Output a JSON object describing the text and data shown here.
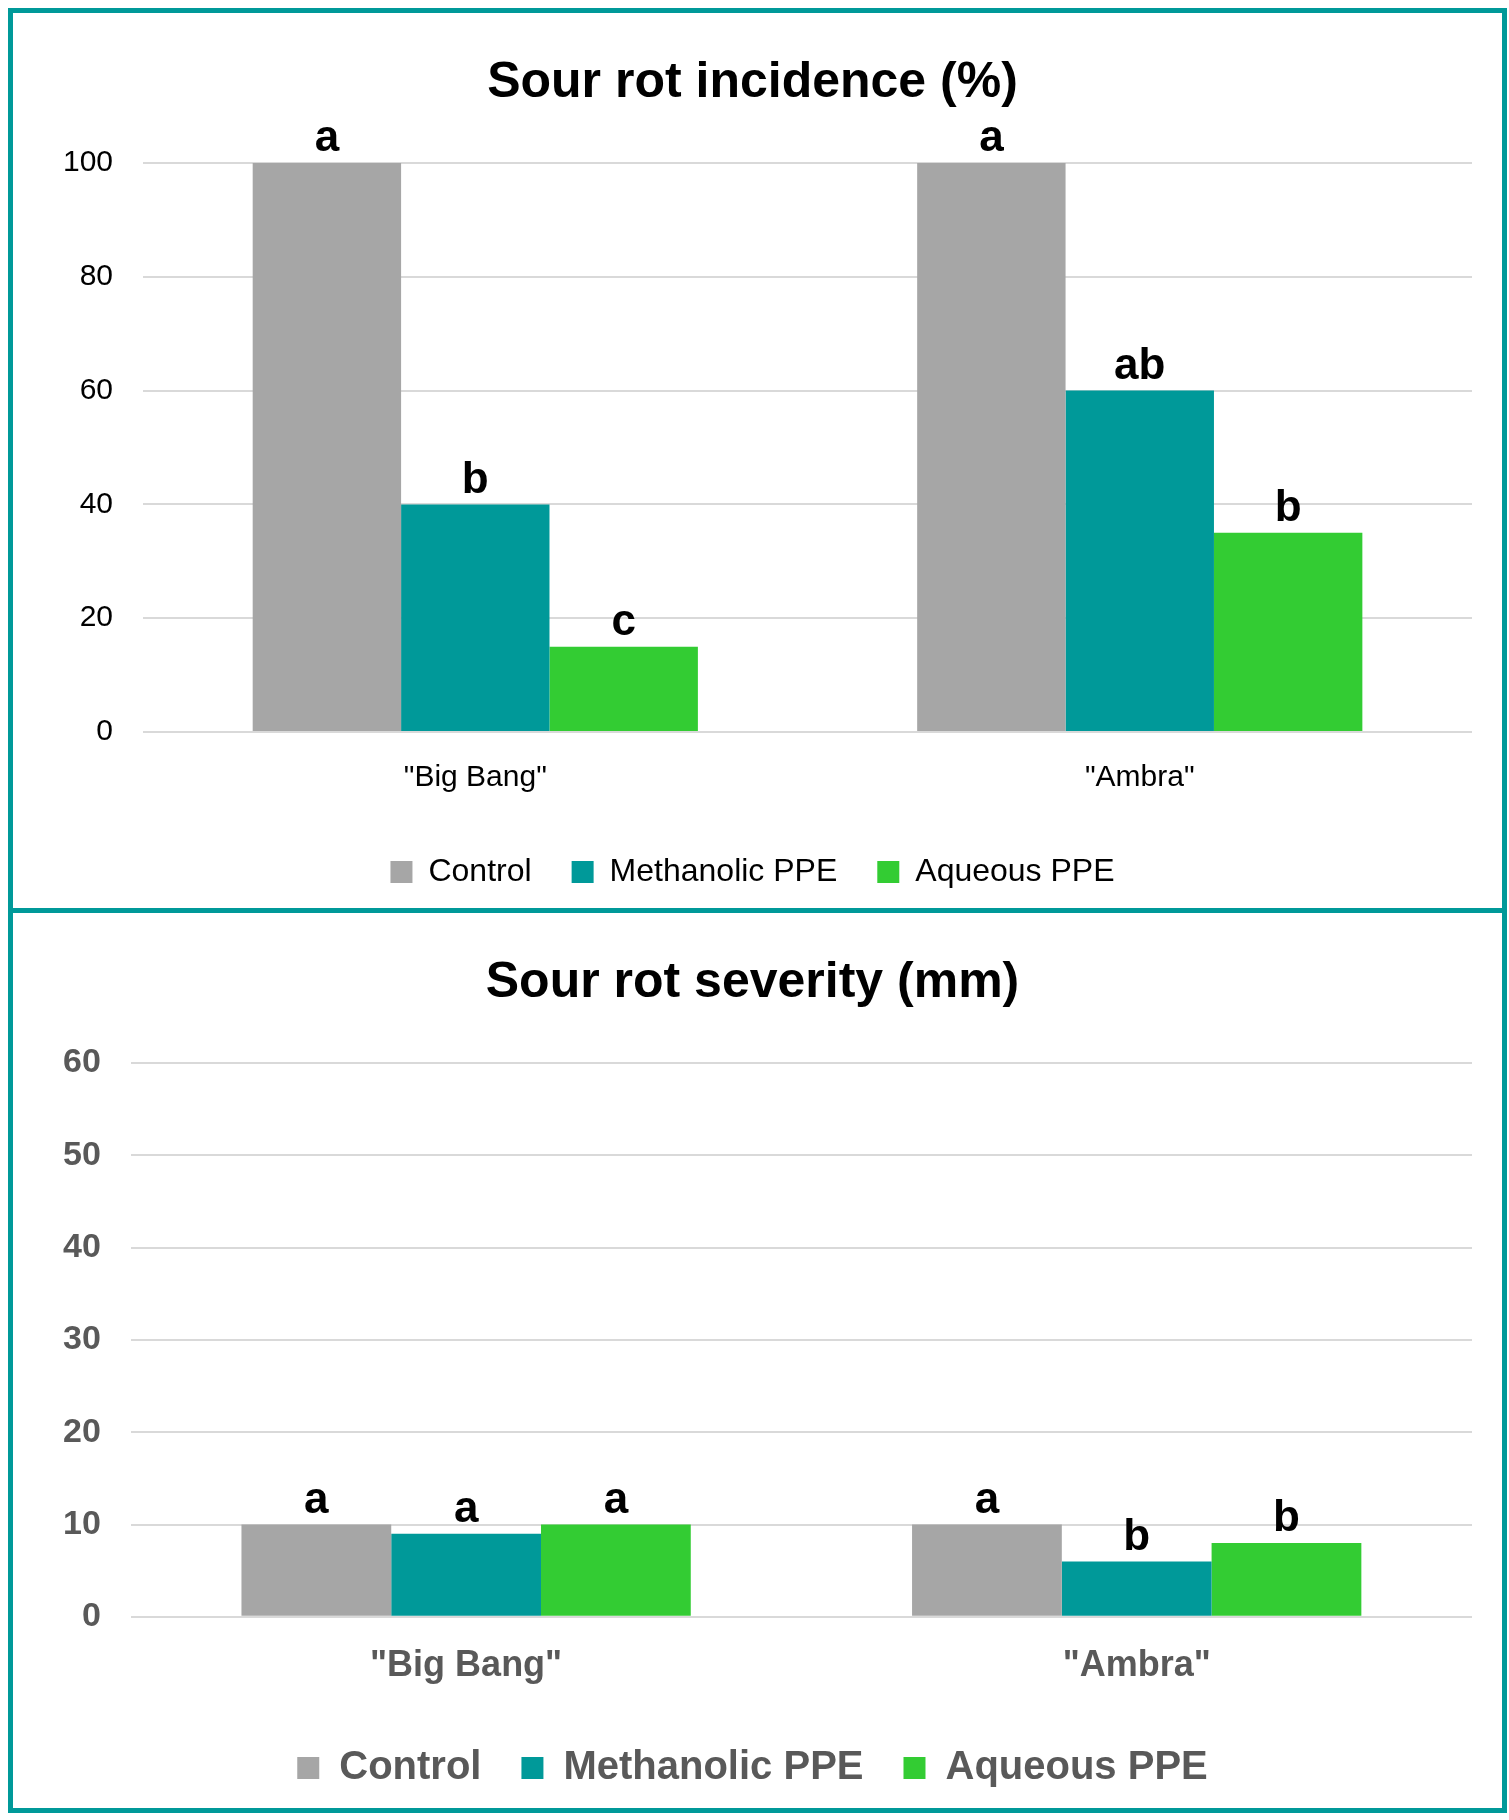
{
  "chart_data": [
    {
      "type": "bar",
      "title": "Sour rot incidence (%)",
      "categories": [
        "\"Big Bang\"",
        "\"Ambra\""
      ],
      "series": [
        {
          "name": "Control",
          "color": "#a6a6a6",
          "values": [
            100,
            100
          ],
          "value_labels": [
            "a",
            "a"
          ]
        },
        {
          "name": "Methanolic PPE",
          "color": "#009999",
          "values": [
            40,
            60
          ],
          "value_labels": [
            "b",
            "ab"
          ]
        },
        {
          "name": "Aqueous PPE",
          "color": "#33cc33",
          "values": [
            15,
            35
          ],
          "value_labels": [
            "c",
            "b"
          ]
        }
      ],
      "ylim": [
        0,
        100
      ],
      "yticks": [
        0,
        20,
        40,
        60,
        80,
        100
      ],
      "grid": "y",
      "legend": "bottom"
    },
    {
      "type": "bar",
      "title": "Sour rot severity (mm)",
      "categories": [
        "\"Big Bang\"",
        "\"Ambra\""
      ],
      "series": [
        {
          "name": "Control",
          "color": "#a6a6a6",
          "values": [
            10,
            10
          ],
          "value_labels": [
            "a",
            "a"
          ]
        },
        {
          "name": "Methanolic PPE",
          "color": "#009999",
          "values": [
            9,
            6
          ],
          "value_labels": [
            "a",
            "b"
          ]
        },
        {
          "name": "Aqueous PPE",
          "color": "#33cc33",
          "values": [
            10,
            8
          ],
          "value_labels": [
            "a",
            "b"
          ]
        }
      ],
      "ylim": [
        0,
        60
      ],
      "yticks": [
        0,
        10,
        20,
        30,
        40,
        50,
        60
      ],
      "grid": "y",
      "legend": "bottom"
    }
  ]
}
